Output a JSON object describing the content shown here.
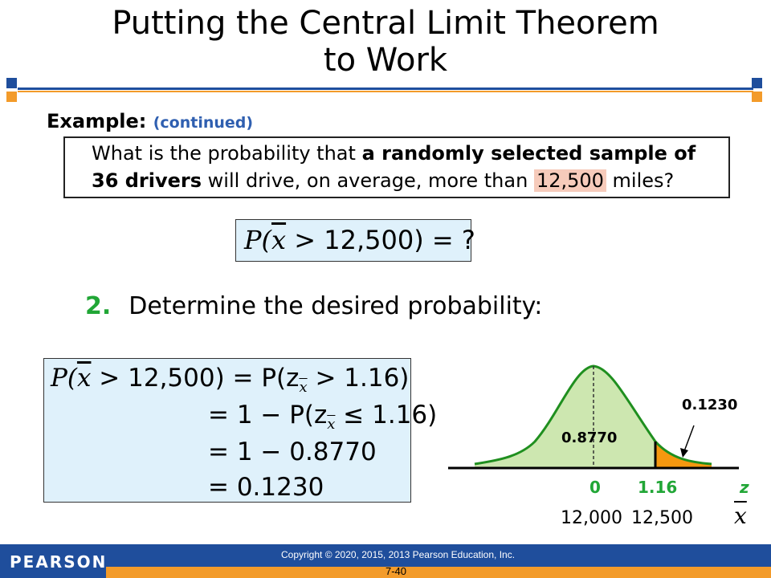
{
  "title": {
    "line1": "Putting the Central Limit Theorem",
    "line2": "to Work"
  },
  "example": {
    "label": "Example:",
    "continued": "(continued)"
  },
  "question": {
    "p1": "What is the probability that ",
    "b1": "a randomly selected sample of",
    "b2": "36 drivers",
    "p2": " will drive, on average, more than ",
    "highlight": "12,500",
    "p3": " miles?"
  },
  "prob_box": {
    "P": "P(",
    "xbar": "x",
    "rest": " > 12,500) = ?"
  },
  "step": {
    "number": "2.",
    "text": "Determine the desired probability:"
  },
  "calc": {
    "line1_a": "P(",
    "line1_xbar": "x",
    "line1_b": " > 12,500) = P(z",
    "line1_sub": "x",
    "line1_c": " > 1.16)",
    "line2_a": "= 1 − P(z",
    "line2_sub": "x",
    "line2_b": " ≤ 1.16)",
    "line3": "= 1 − 0.8770",
    "line4": "= 0.1230"
  },
  "graph": {
    "area_left": "0.8770",
    "area_right": "0.1230",
    "z_zero": "0",
    "z_value": "1.16",
    "z_label": "z",
    "x_mean": "12,000",
    "x_value": "12,500",
    "x_label": "x",
    "colors": {
      "curve": "#1f8f1f",
      "left_fill": "#cde7b0",
      "right_fill": "#f5980f",
      "axis": "#000000"
    }
  },
  "footer": {
    "brand": "PEARSON",
    "copyright": "Copyright © 2020, 2015, 2013 Pearson Education, Inc.",
    "page": "7-40"
  }
}
